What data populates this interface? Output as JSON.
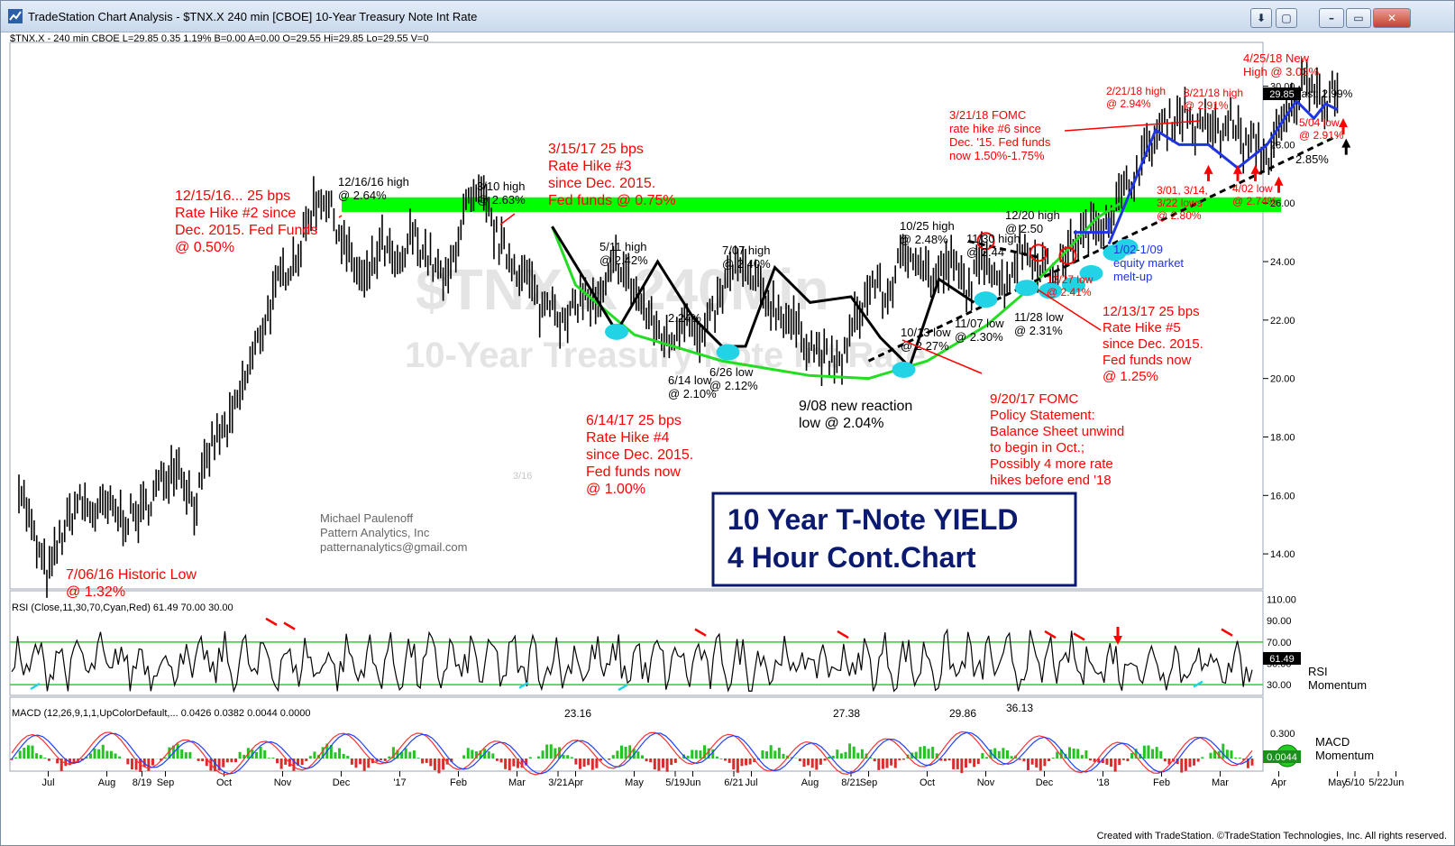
{
  "window": {
    "title": "TradeStation Chart Analysis - $TNX.X 240 min [CBOE] 10-Year Treasury Note Int Rate",
    "buttons": [
      "⬇",
      "▢",
      "–",
      "▭",
      "✕"
    ]
  },
  "status_line": "$TNX.X - 240 min  CBOE  L=29.85  0.35  1.19%  B=0.00  A=0.00  O=29.55  Hi=29.85  Lo=29.55  V=0",
  "watermark": {
    "symbol": "$TNX.X 240Min",
    "name": "10-Year Treasury Note Int Rate"
  },
  "last_label": "Last: 2.99%",
  "last_value": "29.85",
  "rsi_last": "61.49",
  "macd_last": "0.0044",
  "author": {
    "name": "Michael Paulenoff",
    "company": "Pattern Analytics, Inc",
    "email": "patternanalytics@gmail.com"
  },
  "title_box": {
    "line1": "10 Year T-Note YIELD",
    "line2": "4 Hour Cont.Chart"
  },
  "footer": "Created with TradeStation. ©TradeStation Technologies, Inc. All rights reserved.",
  "colors": {
    "support_band": "#00ff00",
    "annotation_red": "#ff0000",
    "annotation_blue": "#0000ff",
    "title_navy": "#0b1a6e",
    "cyan_marker": "#22d3e6",
    "macd_up": "#23c323",
    "macd_down": "#d82d2d"
  },
  "chart_data": [
    {
      "type": "line",
      "title": "",
      "ylim": [
        12.8,
        31.5
      ],
      "y_ticks": [
        14,
        16,
        18,
        20,
        22,
        24,
        26,
        28,
        30
      ],
      "y_tick_labels": [
        "14.00",
        "16.00",
        "18.00",
        "20.00",
        "22.00",
        "24.00",
        "26.00",
        "28.00",
        "30.00"
      ],
      "x_tick_labels": [
        "Jul",
        "Aug",
        "8/19",
        "Sep",
        "Oct",
        "Nov",
        "Dec",
        "'17",
        "Feb",
        "Mar",
        "3/21",
        "Apr",
        "May",
        "5/19",
        "Jun",
        "6/21",
        "Jul",
        "Aug",
        "8/21",
        "Sep",
        "Oct",
        "Nov",
        "Dec",
        "'18",
        "Feb",
        "Mar",
        "Apr",
        "May",
        "5/10",
        "5/22",
        "Jun"
      ],
      "x_tick_months": [
        0.5,
        1.5,
        2.1,
        2.5,
        3.5,
        4.5,
        5.5,
        6.5,
        7.5,
        8.5,
        9.2,
        9.5,
        10.5,
        11.2,
        11.5,
        12.2,
        12.5,
        13.5,
        14.2,
        14.5,
        15.5,
        16.5,
        17.5,
        18.5,
        19.5,
        20.5,
        21.5,
        22.5,
        22.8,
        23.2,
        23.5
      ],
      "price_series": {
        "name": "$TNX.X",
        "months": [
          0,
          0.3,
          0.5,
          0.7,
          1.0,
          1.3,
          1.5,
          1.8,
          2.1,
          2.4,
          2.7,
          3.0,
          3.3,
          3.6,
          3.9,
          4.2,
          4.5,
          4.8,
          5.0,
          5.2,
          5.4,
          5.6,
          5.9,
          6.2,
          6.5,
          6.7,
          7.0,
          7.3,
          7.6,
          7.9,
          8.2,
          8.5,
          8.7,
          8.9,
          9.1,
          9.3,
          9.6,
          9.9,
          10.2,
          10.5,
          10.8,
          11.1,
          11.4,
          11.6,
          11.9,
          12.2,
          12.5,
          12.8,
          13.1,
          13.4,
          13.7,
          14.0,
          14.3,
          14.6,
          14.8,
          15.0,
          15.3,
          15.6,
          15.9,
          16.2,
          16.5,
          16.8,
          17.1,
          17.4,
          17.7,
          18.0,
          18.3,
          18.6,
          18.9,
          19.2,
          19.5,
          19.7,
          19.9,
          20.1,
          20.3,
          20.5,
          20.7,
          20.9,
          21.1,
          21.3,
          21.5,
          21.7,
          21.9,
          22.1,
          22.3,
          22.4,
          22.5
        ],
        "values": [
          16.5,
          14.2,
          13.2,
          14.5,
          15.8,
          15.4,
          15.6,
          15.2,
          15.4,
          16.4,
          17.2,
          15.6,
          17.8,
          18.4,
          20.2,
          22.0,
          23.6,
          24.4,
          25.9,
          26.3,
          25.4,
          24.3,
          23.2,
          24.6,
          23.6,
          25.0,
          24.1,
          23.2,
          25.8,
          26.2,
          24.6,
          23.8,
          23.4,
          22.3,
          22.9,
          21.7,
          22.9,
          22.4,
          24.1,
          23.0,
          21.9,
          21.2,
          22.4,
          21.1,
          22.4,
          23.9,
          23.4,
          22.6,
          22.1,
          21.4,
          20.8,
          20.4,
          22.1,
          23.4,
          22.6,
          23.9,
          24.4,
          23.3,
          24.0,
          23.0,
          24.3,
          23.1,
          24.5,
          24.0,
          23.6,
          24.7,
          25.1,
          25.6,
          26.5,
          27.6,
          28.6,
          28.9,
          29.2,
          28.4,
          28.8,
          28.2,
          29.0,
          27.9,
          28.1,
          27.5,
          28.4,
          29.1,
          30.1,
          30.2,
          29.4,
          29.8,
          29.85
        ]
      },
      "support_band": [
        25.7,
        26.2
      ],
      "cup_arc": {
        "months": [
          9.1,
          9.5,
          10.5,
          12.0,
          13.5,
          14.5,
          15.5,
          16.5,
          17.2,
          17.8,
          18.4,
          18.8
        ],
        "values": [
          25.2,
          23.2,
          21.5,
          20.6,
          20.1,
          20.0,
          20.6,
          21.8,
          23.0,
          24.2,
          25.5,
          26.0
        ]
      },
      "trend_lines": [
        {
          "name": "black-pattern",
          "months": [
            9.1,
            10.2,
            10.9,
            11.5,
            12.0,
            12.4,
            12.9,
            13.5,
            14.2,
            14.7,
            15.2,
            15.7,
            16.3
          ],
          "values": [
            25.2,
            21.6,
            24.0,
            22.1,
            21.1,
            21.1,
            23.8,
            22.6,
            22.8,
            21.4,
            20.4,
            23.4,
            22.6
          ]
        },
        {
          "name": "blue-melt-up",
          "months": [
            18.6,
            19.4,
            19.8,
            20.3,
            20.8,
            21.3,
            21.8,
            22.1,
            22.3,
            22.5
          ],
          "values": [
            24.6,
            28.5,
            28.0,
            28.0,
            27.2,
            28.0,
            29.5,
            28.9,
            29.4,
            29.2
          ]
        },
        {
          "name": "dashed-uptrend",
          "months": [
            14.5,
            22.5
          ],
          "values": [
            20.6,
            28.3
          ],
          "style": "dashed"
        },
        {
          "name": "dashed-highs",
          "months": [
            16.2,
            17.5
          ],
          "values": [
            24.7,
            24.1
          ],
          "style": "dashed"
        }
      ]
    },
    {
      "type": "line",
      "title": "RSI (Close,11,30,70,Cyan,Red) 61.49 70.00 30.00",
      "ylim": [
        20,
        118
      ],
      "y_ticks": [
        30,
        50,
        70,
        90,
        110
      ],
      "y_tick_labels": [
        "30.00",
        "50.00",
        "70.00",
        "90.00",
        "110.00"
      ],
      "levels": [
        30,
        70
      ],
      "labels": [
        "RSI",
        "Momentum"
      ],
      "annotations": [
        "23.16",
        "27.38",
        "29.86",
        "36.13"
      ]
    },
    {
      "type": "bar",
      "title": "MACD (12,26,9,1,1,UpColorDefault,... 0.0426 0.0382 0.0044 0.0000",
      "y_ticks": [
        0.3
      ],
      "y_tick_labels": [
        "0.300"
      ],
      "labels": [
        "MACD",
        "Momentum"
      ]
    }
  ],
  "annotations": {
    "low_2016": [
      "7/06/16 Historic Low",
      "@ 1.32%"
    ],
    "hike2": [
      "12/15/16... 25 bps",
      "Rate Hike #2 since",
      "Dec. 2015. Fed Funds",
      "@ 0.50%"
    ],
    "high_1216": [
      "12/16/16 high",
      "@ 2.64%"
    ],
    "high_310": [
      "3/10 high",
      "@ 2.63%"
    ],
    "hike3": [
      "3/15/17 25 bps",
      "Rate Hike #3",
      "since Dec. 2015.",
      "Fed funds @ 0.75%"
    ],
    "high_511": [
      "5/11 high",
      "@ 2.42%"
    ],
    "high_707": [
      "7/07 high",
      "@ 2.40%"
    ],
    "mark_224": "2.24%",
    "low_614": [
      "6/14 low",
      "@ 2.10%"
    ],
    "low_626": [
      "6/26 low",
      "@ 2.12%"
    ],
    "hike4": [
      "6/14/17 25 bps",
      "Rate Hike #4",
      "since Dec. 2015.",
      "Fed funds now",
      "@ 1.00%"
    ],
    "low_908": [
      "9/08 new reaction",
      "low @ 2.04%"
    ],
    "fomc_920": [
      "9/20/17 FOMC",
      "Policy Statement:",
      "Balance Sheet unwind",
      "to begin in Oct.;",
      "Possibly 4 more rate",
      "hikes before end '18"
    ],
    "high_1025": [
      "10/25 high",
      "@ 2.48%"
    ],
    "high_1130": [
      "11/30 high",
      "@ 2.44"
    ],
    "high_1220": [
      "12/20 high",
      "@ 2.50"
    ],
    "low_1013": [
      "10/13 low",
      "@ 2.27%"
    ],
    "low_1107": [
      "11/07 low",
      "@ 2.30%"
    ],
    "low_1128": [
      "11/28 low",
      "@ 2.31%"
    ],
    "low_1227": [
      "12/27 low",
      "@ 2.41%"
    ],
    "hike5": [
      "12/13/17 25 bps",
      "Rate Hike #5",
      "since Dec. 2015.",
      "Fed funds now",
      "@ 1.25%"
    ],
    "meltup": [
      "1/02-1/09",
      "equity market",
      "melt-up"
    ],
    "fomc_321": [
      "3/21/18 FOMC",
      "rate hike #6 since",
      "Dec. '15. Fed funds",
      "now 1.50%-1.75%"
    ],
    "high_221": [
      "2/21/18 high",
      "@ 2.94%"
    ],
    "high_321": [
      "3/21/18 high",
      "@ 2.91%"
    ],
    "high_425": [
      "4/25/18 New",
      "High @ 3.03%"
    ],
    "lows_301": [
      "3/01, 3/14,",
      "3/22 lows",
      "@ 2.80%"
    ],
    "low_402": [
      "4/02 low",
      "@ 2.74%"
    ],
    "low_504": [
      "5/04 low",
      "@ 2.91%"
    ],
    "mark_285": "2.85%",
    "faint_date": "3/16"
  }
}
